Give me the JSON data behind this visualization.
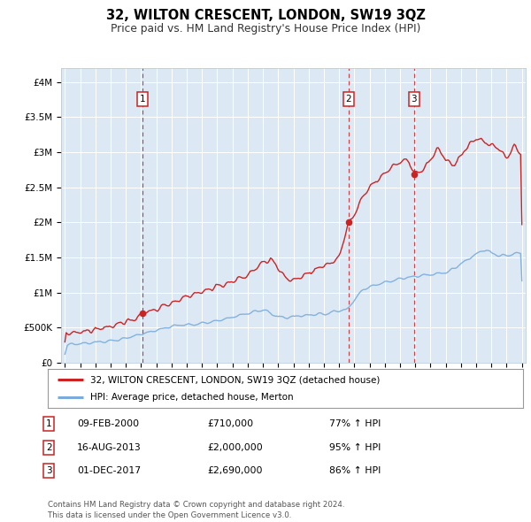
{
  "title": "32, WILTON CRESCENT, LONDON, SW19 3QZ",
  "subtitle": "Price paid vs. HM Land Registry's House Price Index (HPI)",
  "xlim": [
    1994.75,
    2025.25
  ],
  "ylim": [
    0,
    4200000
  ],
  "yticks": [
    0,
    500000,
    1000000,
    1500000,
    2000000,
    2500000,
    3000000,
    3500000,
    4000000
  ],
  "ytick_labels": [
    "£0",
    "£500K",
    "£1M",
    "£1.5M",
    "£2M",
    "£2.5M",
    "£3M",
    "£3.5M",
    "£4M"
  ],
  "background_color": "#dce9f5",
  "grid_color": "#ffffff",
  "sale_color": "#cc2222",
  "hpi_color": "#7aabdb",
  "sale_dates": [
    2000.11,
    2013.62,
    2017.92
  ],
  "sale_prices": [
    710000,
    2000000,
    2690000
  ],
  "sale_labels": [
    "1",
    "2",
    "3"
  ],
  "legend_sale": "32, WILTON CRESCENT, LONDON, SW19 3QZ (detached house)",
  "legend_hpi": "HPI: Average price, detached house, Merton",
  "table_rows": [
    [
      "1",
      "09-FEB-2000",
      "£710,000",
      "77% ↑ HPI"
    ],
    [
      "2",
      "16-AUG-2013",
      "£2,000,000",
      "95% ↑ HPI"
    ],
    [
      "3",
      "01-DEC-2017",
      "£2,690,000",
      "86% ↑ HPI"
    ]
  ],
  "footnote": "Contains HM Land Registry data © Crown copyright and database right 2024.\nThis data is licensed under the Open Government Licence v3.0."
}
